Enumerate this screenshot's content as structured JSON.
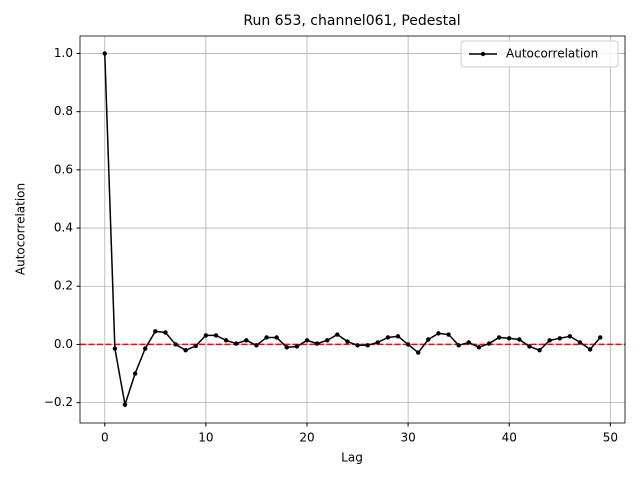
{
  "chart_data": {
    "type": "line",
    "title": "Run 653, channel061, Pedestal",
    "xlabel": "Lag",
    "ylabel": "Autocorrelation",
    "x": [
      0,
      1,
      2,
      3,
      4,
      5,
      6,
      7,
      8,
      9,
      10,
      11,
      12,
      13,
      14,
      15,
      16,
      17,
      18,
      19,
      20,
      21,
      22,
      23,
      24,
      25,
      26,
      27,
      28,
      29,
      30,
      31,
      32,
      33,
      34,
      35,
      36,
      37,
      38,
      39,
      40,
      41,
      42,
      43,
      44,
      45,
      46,
      47,
      48,
      49
    ],
    "series": [
      {
        "name": "Autocorrelation",
        "color": "#000000",
        "values": [
          1.0,
          -0.014,
          -0.207,
          -0.1,
          -0.014,
          0.045,
          0.041,
          0.0,
          -0.02,
          -0.005,
          0.031,
          0.031,
          0.014,
          0.003,
          0.014,
          -0.003,
          0.024,
          0.024,
          -0.01,
          -0.007,
          0.014,
          0.003,
          0.014,
          0.034,
          0.01,
          -0.003,
          -0.003,
          0.007,
          0.024,
          0.028,
          0.0,
          -0.028,
          0.017,
          0.038,
          0.034,
          -0.003,
          0.007,
          -0.01,
          0.003,
          0.024,
          0.021,
          0.017,
          -0.007,
          -0.02,
          0.014,
          0.021,
          0.028,
          0.007,
          -0.017,
          0.024
        ]
      }
    ],
    "reference_line": 0,
    "reference_color": "#ff0000",
    "xlim": [
      -2.45,
      51.45
    ],
    "xticks": [
      0,
      10,
      20,
      30,
      40,
      50
    ],
    "ylim": [
      -0.27,
      1.06
    ],
    "yticks": [
      {
        "value": -0.2,
        "label": "−0.2"
      },
      {
        "value": 0,
        "label": "0.0"
      },
      {
        "value": 0.2,
        "label": "0.2"
      },
      {
        "value": 0.4,
        "label": "0.4"
      },
      {
        "value": 0.6,
        "label": "0.6"
      },
      {
        "value": 0.8,
        "label": "0.8"
      },
      {
        "value": 1.0,
        "label": "1.0"
      }
    ],
    "grid": true,
    "legend": "upper right"
  }
}
